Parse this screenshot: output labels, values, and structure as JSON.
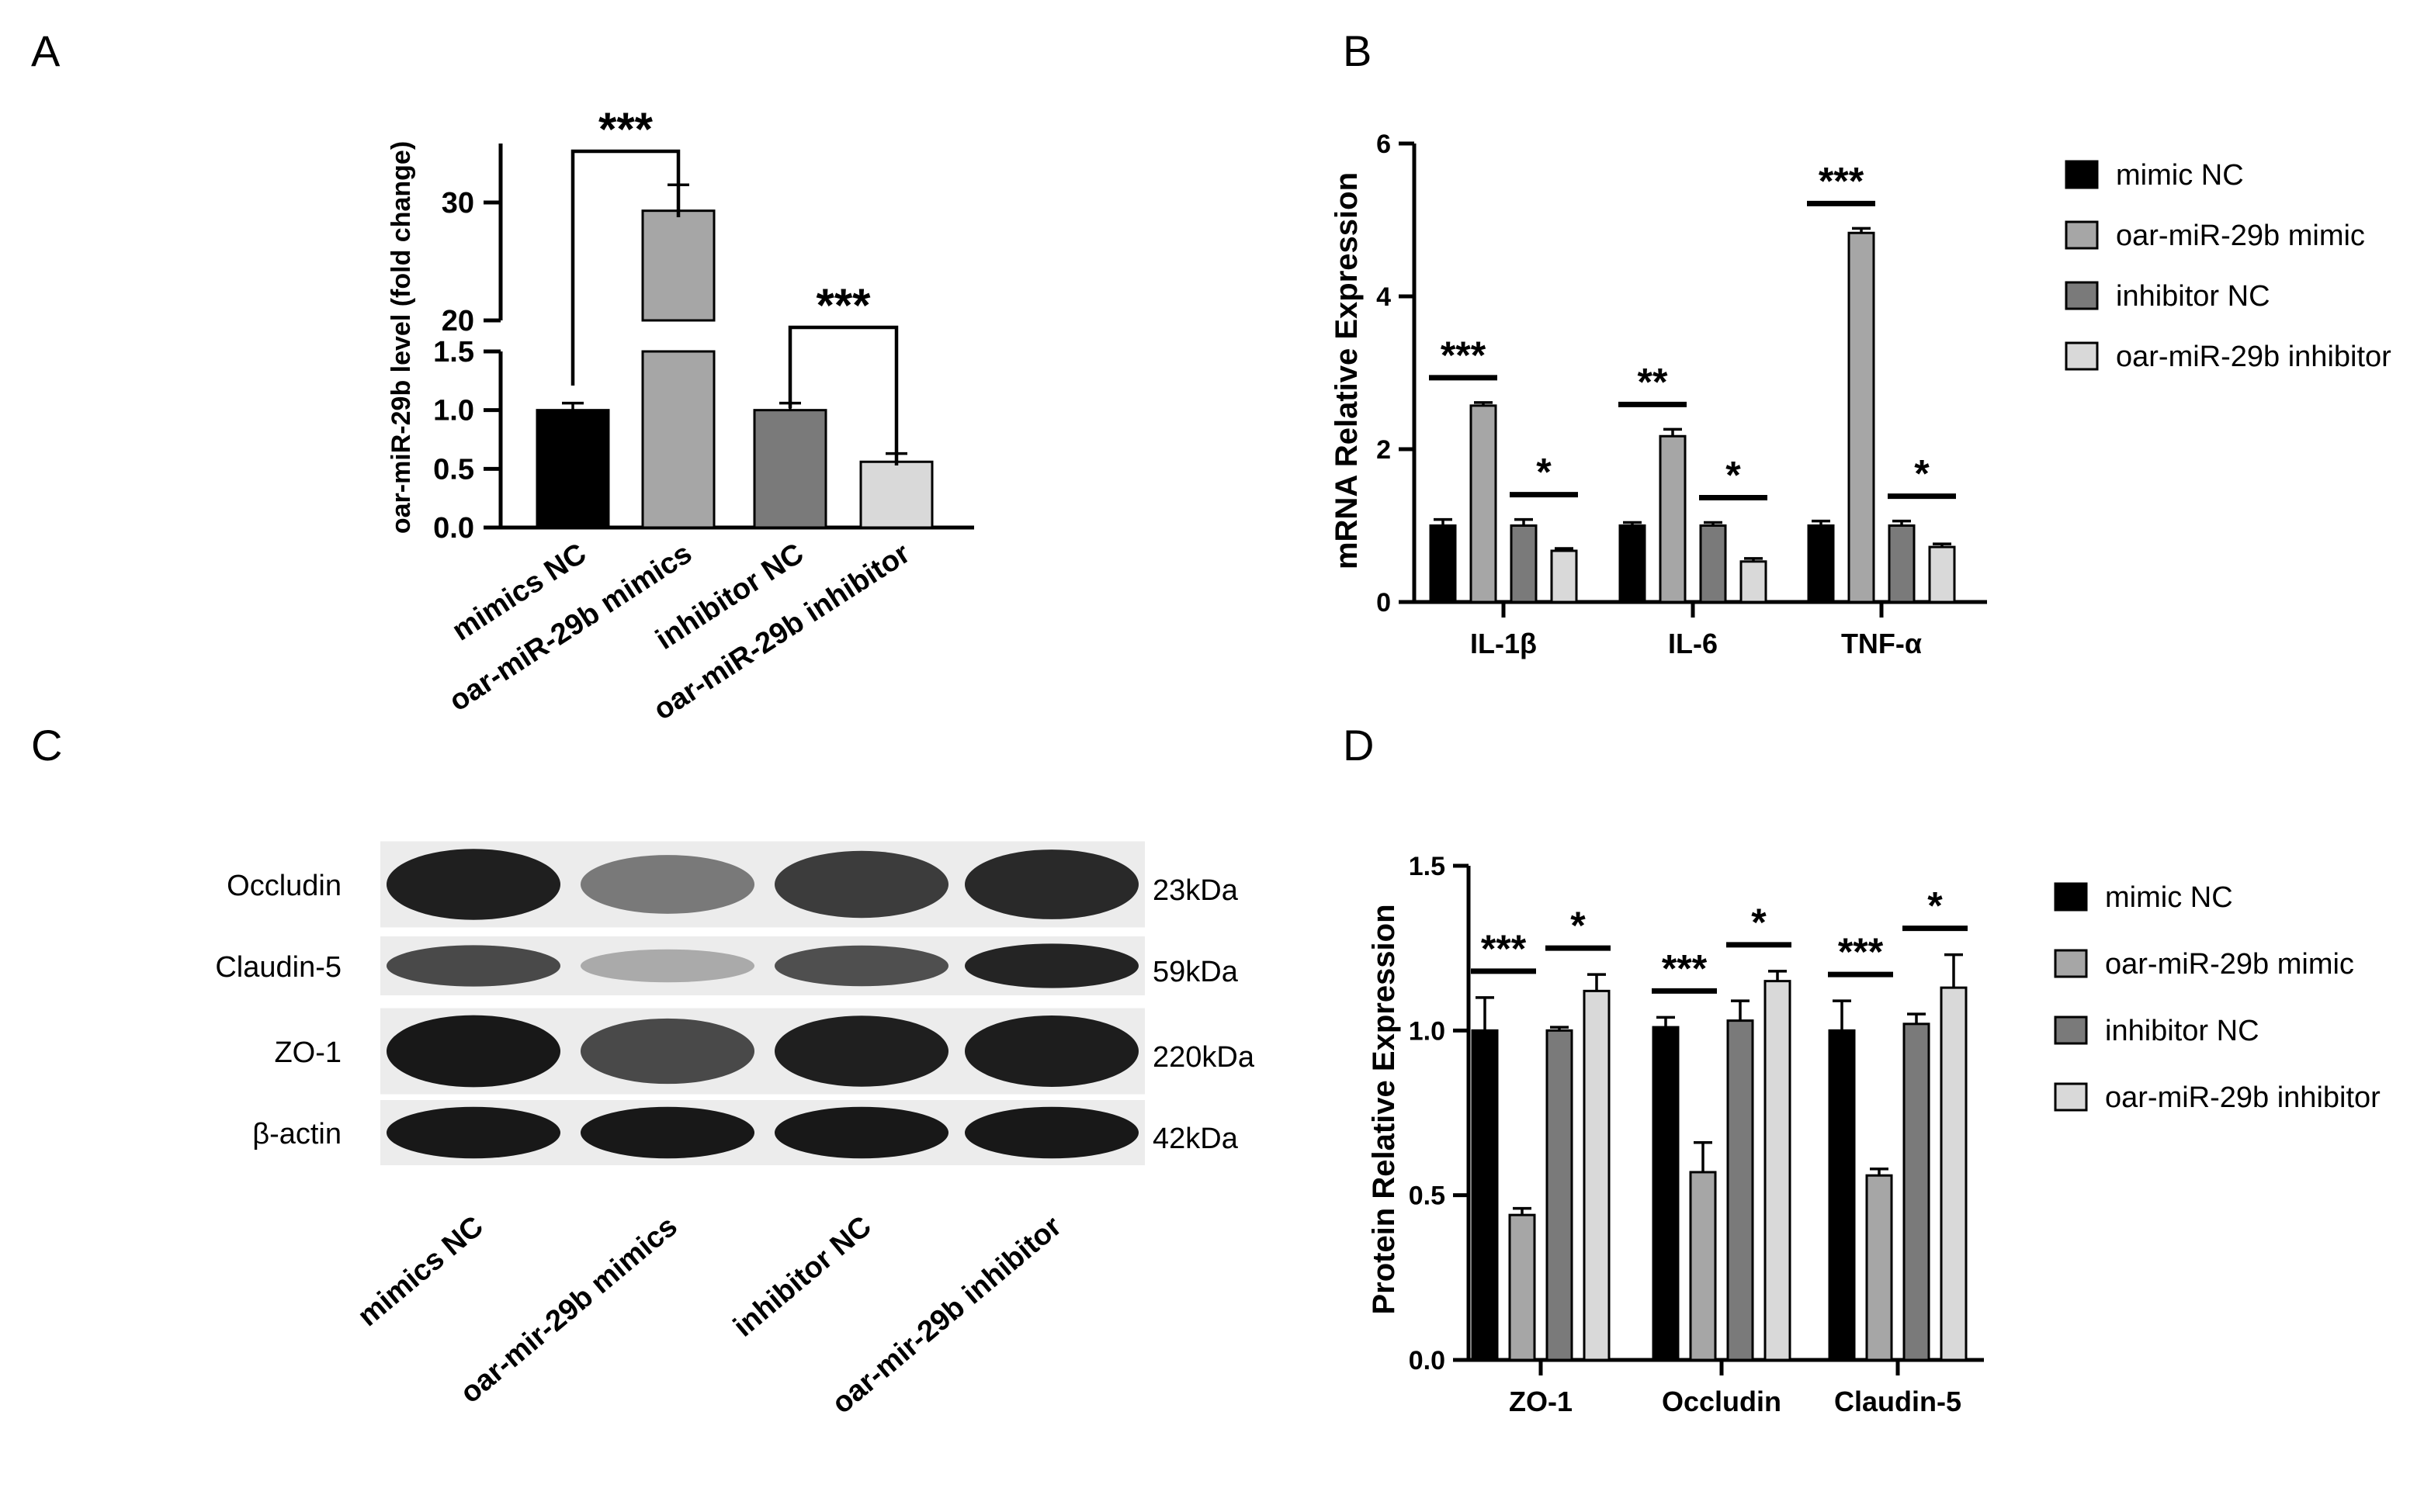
{
  "panels": {
    "A": {
      "letter": "A"
    },
    "B": {
      "letter": "B"
    },
    "C": {
      "letter": "C"
    },
    "D": {
      "letter": "D"
    }
  },
  "colors": {
    "mimic_nc": "#000000",
    "mimic": "#a6a6a6",
    "inhibitor_nc": "#7a7a7a",
    "inhibitor": "#d9d9d9"
  },
  "chart_data": [
    {
      "panel": "A",
      "type": "bar",
      "ylabel": "oar-miR-29b level (fold change)",
      "categories": [
        "mimics NC",
        "oar-miR-29b mimics",
        "inhibitor NC",
        "oar-miR-29b inhibitor"
      ],
      "values": [
        1.0,
        29.3,
        1.0,
        0.56
      ],
      "errors": [
        0.06,
        2.2,
        0.06,
        0.07
      ],
      "colors": [
        "#000000",
        "#a6a6a6",
        "#7a7a7a",
        "#d9d9d9"
      ],
      "broken_axis": true,
      "ylim_lower": [
        0,
        1.5
      ],
      "ylim_upper": [
        20,
        35
      ],
      "yticks_lower": [
        "0.0",
        "0.5",
        "1.0",
        "1.5"
      ],
      "yticks_upper": [
        "20",
        "30"
      ],
      "significance": [
        {
          "between": [
            0,
            1
          ],
          "label": "***"
        },
        {
          "between": [
            2,
            3
          ],
          "label": "***"
        }
      ]
    },
    {
      "panel": "B",
      "type": "bar",
      "ylabel": "mRNA Relative Expression",
      "categories": [
        "IL-1β",
        "IL-6",
        "TNF-α"
      ],
      "ylim": [
        0,
        6
      ],
      "yticks": [
        "0",
        "2",
        "4",
        "6"
      ],
      "series": [
        {
          "name": "mimic NC",
          "values": [
            1.0,
            1.0,
            1.0
          ],
          "errors": [
            0.08,
            0.04,
            0.06
          ]
        },
        {
          "name": "oar-miR-29b mimic",
          "values": [
            2.57,
            2.17,
            4.83
          ],
          "errors": [
            0.04,
            0.09,
            0.06
          ]
        },
        {
          "name": "inhibitor NC",
          "values": [
            1.0,
            1.0,
            1.0
          ],
          "errors": [
            0.08,
            0.04,
            0.06
          ]
        },
        {
          "name": "oar-miR-29b inhibitor",
          "values": [
            0.67,
            0.53,
            0.72
          ],
          "errors": [
            0.03,
            0.04,
            0.04
          ]
        }
      ],
      "significance": [
        {
          "group": 0,
          "pair": [
            0,
            1
          ],
          "label": "***"
        },
        {
          "group": 0,
          "pair": [
            2,
            3
          ],
          "label": "*"
        },
        {
          "group": 1,
          "pair": [
            0,
            1
          ],
          "label": "**"
        },
        {
          "group": 1,
          "pair": [
            2,
            3
          ],
          "label": "*"
        },
        {
          "group": 2,
          "pair": [
            0,
            1
          ],
          "label": "***"
        },
        {
          "group": 2,
          "pair": [
            2,
            3
          ],
          "label": "*"
        }
      ]
    },
    {
      "panel": "D",
      "type": "bar",
      "ylabel": "Protein Relative Expression",
      "categories": [
        "ZO-1",
        "Occludin",
        "Claudin-5"
      ],
      "ylim": [
        0,
        1.5
      ],
      "yticks": [
        "0.0",
        "0.5",
        "1.0",
        "1.5"
      ],
      "series": [
        {
          "name": "mimic NC",
          "values": [
            1.0,
            1.01,
            1.0
          ],
          "errors": [
            0.1,
            0.03,
            0.09
          ]
        },
        {
          "name": "oar-miR-29b mimic",
          "values": [
            0.44,
            0.57,
            0.56
          ],
          "errors": [
            0.02,
            0.09,
            0.02
          ]
        },
        {
          "name": "inhibitor NC",
          "values": [
            1.0,
            1.03,
            1.02
          ],
          "errors": [
            0.01,
            0.06,
            0.03
          ]
        },
        {
          "name": "oar-miR-29b inhibitor",
          "values": [
            1.12,
            1.15,
            1.13
          ],
          "errors": [
            0.05,
            0.03,
            0.1
          ]
        }
      ],
      "significance": [
        {
          "group": 0,
          "pair": [
            0,
            1
          ],
          "label": "***"
        },
        {
          "group": 0,
          "pair": [
            2,
            3
          ],
          "label": "*"
        },
        {
          "group": 1,
          "pair": [
            0,
            1
          ],
          "label": "***"
        },
        {
          "group": 1,
          "pair": [
            2,
            3
          ],
          "label": "*"
        },
        {
          "group": 2,
          "pair": [
            0,
            1
          ],
          "label": "***"
        },
        {
          "group": 2,
          "pair": [
            2,
            3
          ],
          "label": "*"
        }
      ]
    }
  ],
  "blot": {
    "rows": [
      {
        "protein": "Occludin",
        "size": "23kDa",
        "intensity": [
          0.92,
          0.55,
          0.8,
          0.88
        ]
      },
      {
        "protein": "Claudin-5",
        "size": "59kDa",
        "intensity": [
          0.75,
          0.35,
          0.72,
          0.9
        ]
      },
      {
        "protein": "ZO-1",
        "size": "220kDa",
        "intensity": [
          0.95,
          0.75,
          0.92,
          0.93
        ]
      },
      {
        "protein": "β-actin",
        "size": "42kDa",
        "intensity": [
          0.95,
          0.95,
          0.95,
          0.95
        ]
      }
    ],
    "lanes": [
      "mimics NC",
      "oar-mir-29b mimics",
      "inhibitor NC",
      "oar-mir-29b inhibitor"
    ]
  }
}
